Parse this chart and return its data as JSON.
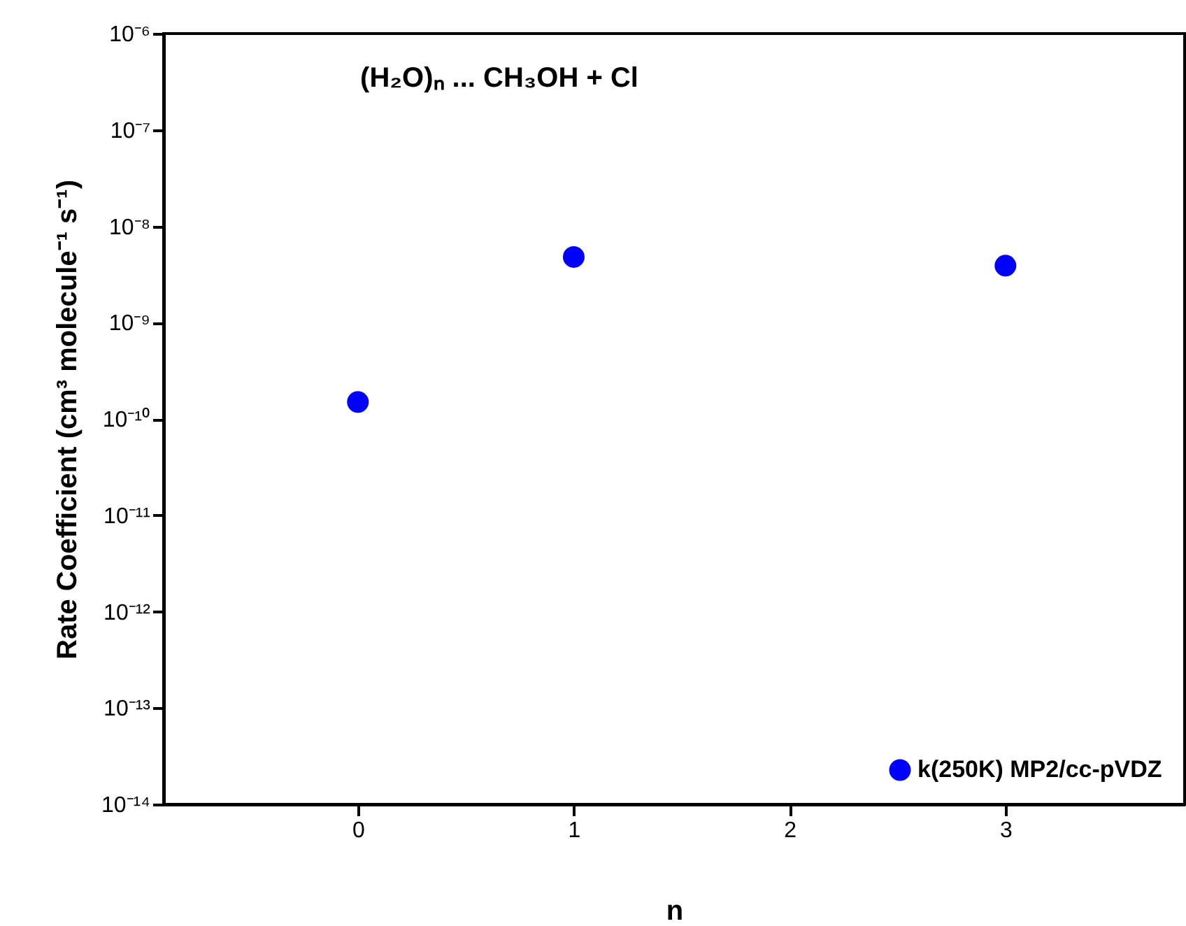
{
  "chart_data": {
    "type": "scatter",
    "annotations": [
      {
        "text": "(H₂O)ₙ ... CH₃OH + Cl"
      }
    ],
    "xlabel": "n",
    "ylabel": "Rate Coefficient (cm³ molecule⁻¹ s⁻¹)",
    "x": [
      0,
      1,
      3
    ],
    "series": [
      {
        "name": "k(250K) MP2/cc-pVDZ",
        "color": "#0000ff",
        "values": [
          1.5e-10,
          4.8e-09,
          3.9e-09
        ]
      }
    ],
    "xlim": [
      -0.9,
      3.83
    ],
    "xticks": [
      0,
      1,
      2,
      3
    ],
    "ylim": [
      1e-14,
      1e-06
    ],
    "yticks": [
      {
        "value": 1e-14,
        "label": "10⁻¹⁴"
      },
      {
        "value": 1e-13,
        "label": "10⁻¹³"
      },
      {
        "value": 1e-12,
        "label": "10⁻¹²"
      },
      {
        "value": 1e-11,
        "label": "10⁻¹¹"
      },
      {
        "value": 1e-10,
        "label": "10⁻¹⁰"
      },
      {
        "value": 1e-09,
        "label": "10⁻⁹"
      },
      {
        "value": 1e-08,
        "label": "10⁻⁸"
      },
      {
        "value": 1e-07,
        "label": "10⁻⁷"
      },
      {
        "value": 1e-06,
        "label": "10⁻⁶"
      }
    ],
    "log": "y",
    "grid": false,
    "legend": "bottom right",
    "marker": "circle"
  }
}
